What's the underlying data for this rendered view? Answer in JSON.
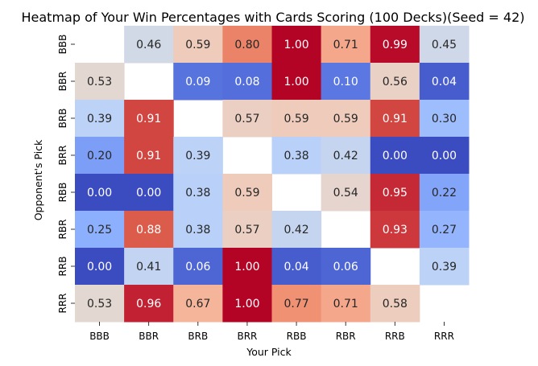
{
  "chart_data": {
    "type": "heatmap",
    "title": "Heatmap of Your Win Percentages with Cards Scoring (100 Decks)(Seed = 42)",
    "xlabel": "Your Pick",
    "ylabel": "Opponent's Pick",
    "x_categories": [
      "BBB",
      "BBR",
      "BRB",
      "BRR",
      "RBB",
      "RBR",
      "RRB",
      "RRR"
    ],
    "y_categories": [
      "BBB",
      "BBR",
      "BRB",
      "BRR",
      "RBB",
      "RBR",
      "RRB",
      "RRR"
    ],
    "values": [
      [
        null,
        0.46,
        0.59,
        0.8,
        1.0,
        0.71,
        0.99,
        0.45
      ],
      [
        0.53,
        null,
        0.09,
        0.08,
        1.0,
        0.1,
        0.56,
        0.04
      ],
      [
        0.39,
        0.91,
        null,
        0.57,
        0.59,
        0.59,
        0.91,
        0.3
      ],
      [
        0.2,
        0.91,
        0.39,
        null,
        0.38,
        0.42,
        0.0,
        0.0
      ],
      [
        0.0,
        0.0,
        0.38,
        0.59,
        null,
        0.54,
        0.95,
        0.22
      ],
      [
        0.25,
        0.88,
        0.38,
        0.57,
        0.42,
        null,
        0.93,
        0.27
      ],
      [
        0.0,
        0.41,
        0.06,
        1.0,
        0.04,
        0.06,
        null,
        0.39
      ],
      [
        0.53,
        0.96,
        0.67,
        1.0,
        0.77,
        0.71,
        0.58,
        null
      ]
    ],
    "value_format": "0.00",
    "value_range": [
      0,
      1
    ],
    "colormap": "coolwarm",
    "colorbar": false,
    "grid": false
  }
}
